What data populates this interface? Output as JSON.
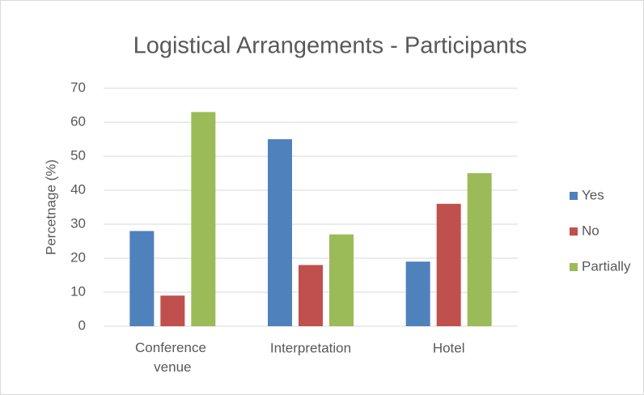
{
  "chart_data": {
    "type": "bar",
    "title": "Logistical Arrangements - Participants",
    "y_label": "Percetnage (%)",
    "categories": [
      "Conference venue",
      "Interpretation",
      "Hotel"
    ],
    "series": [
      {
        "name": "Yes",
        "color": "#4f81bd",
        "values": [
          28,
          55,
          19
        ]
      },
      {
        "name": "No",
        "color": "#c0504d",
        "values": [
          9,
          18,
          36
        ]
      },
      {
        "name": "Partially",
        "color": "#9bbb59",
        "values": [
          63,
          27,
          45
        ]
      }
    ],
    "ylim": [
      0,
      70
    ],
    "yticks": [
      0,
      10,
      20,
      30,
      40,
      50,
      60,
      70
    ],
    "grid": true,
    "legend": "right"
  }
}
